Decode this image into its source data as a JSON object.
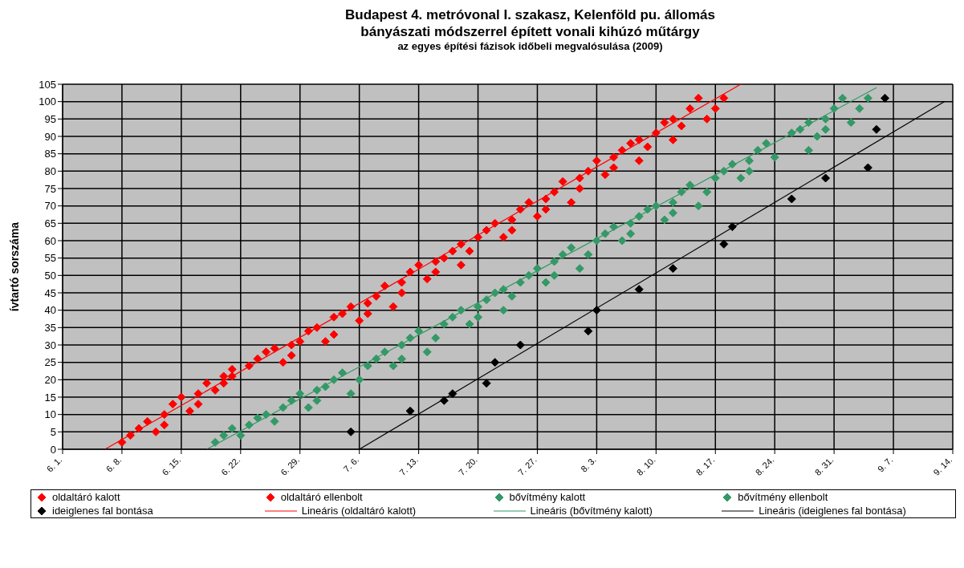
{
  "chart_data": {
    "type": "scatter",
    "title": "Budapest 4. metróvonal I. szakasz, Kelenföld pu. állomás\nbányászati módszerrel épített vonali kihúzó műtárgy",
    "subtitle": "az egyes építési fázisok időbeli megvalósulása (2009)",
    "ylabel": "ívtartó sorszáma",
    "marker": "diamond",
    "grid": true,
    "legend": "bottom",
    "xlim": [
      "2009-06-01",
      "2009-09-14"
    ],
    "xticks": [
      {
        "value": "2009-06-01",
        "label": "6. 1."
      },
      {
        "value": "2009-06-08",
        "label": "6. 8."
      },
      {
        "value": "2009-06-15",
        "label": "6. 15."
      },
      {
        "value": "2009-06-22",
        "label": "6. 22."
      },
      {
        "value": "2009-06-29",
        "label": "6. 29."
      },
      {
        "value": "2009-07-06",
        "label": "7. 6."
      },
      {
        "value": "2009-07-13",
        "label": "7. 13."
      },
      {
        "value": "2009-07-20",
        "label": "7. 20."
      },
      {
        "value": "2009-07-27",
        "label": "7. 27."
      },
      {
        "value": "2009-08-03",
        "label": "8. 3."
      },
      {
        "value": "2009-08-10",
        "label": "8. 10."
      },
      {
        "value": "2009-08-17",
        "label": "8. 17."
      },
      {
        "value": "2009-08-24",
        "label": "8. 24."
      },
      {
        "value": "2009-08-31",
        "label": "8. 31."
      },
      {
        "value": "2009-09-07",
        "label": "9. 7."
      },
      {
        "value": "2009-09-14",
        "label": "9. 14."
      }
    ],
    "ylim": [
      0,
      105
    ],
    "yticks": [
      0,
      5,
      10,
      15,
      20,
      25,
      30,
      35,
      40,
      45,
      50,
      55,
      60,
      65,
      70,
      75,
      80,
      85,
      90,
      95,
      100,
      105
    ],
    "series": [
      {
        "name": "oldaltáró kalott",
        "color": "#ff0000",
        "x": [
          "2009-06-08",
          "2009-06-09",
          "2009-06-10",
          "2009-06-11",
          "2009-06-13",
          "2009-06-14",
          "2009-06-15",
          "2009-06-17",
          "2009-06-18",
          "2009-06-20",
          "2009-06-21",
          "2009-06-23",
          "2009-06-24",
          "2009-06-25",
          "2009-06-26",
          "2009-06-28",
          "2009-06-29",
          "2009-06-30",
          "2009-07-01",
          "2009-07-03",
          "2009-07-04",
          "2009-07-05",
          "2009-07-07",
          "2009-07-08",
          "2009-07-09",
          "2009-07-11",
          "2009-07-12",
          "2009-07-13",
          "2009-07-15",
          "2009-07-16",
          "2009-07-17",
          "2009-07-18",
          "2009-07-20",
          "2009-07-21",
          "2009-07-22",
          "2009-07-24",
          "2009-07-25",
          "2009-07-26",
          "2009-07-28",
          "2009-07-29",
          "2009-07-30",
          "2009-08-01",
          "2009-08-02",
          "2009-08-03",
          "2009-08-05",
          "2009-08-06",
          "2009-08-07",
          "2009-08-08",
          "2009-08-10",
          "2009-08-11",
          "2009-08-12",
          "2009-08-14",
          "2009-08-15"
        ],
        "values": [
          2,
          4,
          6,
          8,
          10,
          13,
          15,
          16,
          19,
          21,
          23,
          24,
          26,
          28,
          29,
          30,
          31,
          34,
          35,
          38,
          39,
          41,
          42,
          44,
          47,
          48,
          51,
          53,
          54,
          55,
          57,
          59,
          61,
          63,
          65,
          66,
          69,
          71,
          72,
          74,
          77,
          78,
          80,
          83,
          84,
          86,
          88,
          89,
          91,
          94,
          95,
          98,
          101
        ]
      },
      {
        "name": "oldaltáró ellenbolt",
        "color": "#ff0000",
        "x": [
          "2009-06-12",
          "2009-06-13",
          "2009-06-16",
          "2009-06-17",
          "2009-06-19",
          "2009-06-20",
          "2009-06-21",
          "2009-06-27",
          "2009-06-28",
          "2009-07-02",
          "2009-07-03",
          "2009-07-06",
          "2009-07-07",
          "2009-07-10",
          "2009-07-11",
          "2009-07-14",
          "2009-07-15",
          "2009-07-18",
          "2009-07-19",
          "2009-07-23",
          "2009-07-24",
          "2009-07-27",
          "2009-07-28",
          "2009-07-31",
          "2009-08-01",
          "2009-08-04",
          "2009-08-05",
          "2009-08-08",
          "2009-08-09",
          "2009-08-12",
          "2009-08-13",
          "2009-08-16",
          "2009-08-17",
          "2009-08-18"
        ],
        "values": [
          5,
          7,
          11,
          13,
          17,
          19,
          21,
          25,
          27,
          31,
          33,
          37,
          39,
          41,
          45,
          49,
          51,
          53,
          57,
          61,
          63,
          67,
          69,
          71,
          75,
          79,
          81,
          83,
          87,
          89,
          93,
          95,
          98,
          101
        ]
      },
      {
        "name": "bővítmény kalott",
        "color": "#339966",
        "x": [
          "2009-06-19",
          "2009-06-20",
          "2009-06-21",
          "2009-06-23",
          "2009-06-24",
          "2009-06-25",
          "2009-06-27",
          "2009-06-28",
          "2009-06-29",
          "2009-07-01",
          "2009-07-02",
          "2009-07-03",
          "2009-07-04",
          "2009-07-07",
          "2009-07-08",
          "2009-07-09",
          "2009-07-11",
          "2009-07-12",
          "2009-07-13",
          "2009-07-16",
          "2009-07-17",
          "2009-07-18",
          "2009-07-20",
          "2009-07-21",
          "2009-07-22",
          "2009-07-23",
          "2009-07-25",
          "2009-07-26",
          "2009-07-27",
          "2009-07-29",
          "2009-07-30",
          "2009-07-31",
          "2009-08-03",
          "2009-08-04",
          "2009-08-05",
          "2009-08-07",
          "2009-08-08",
          "2009-08-09",
          "2009-08-10",
          "2009-08-12",
          "2009-08-13",
          "2009-08-14",
          "2009-08-17",
          "2009-08-18",
          "2009-08-19",
          "2009-08-21",
          "2009-08-22",
          "2009-08-23",
          "2009-08-26",
          "2009-08-27",
          "2009-08-28",
          "2009-08-30",
          "2009-08-31",
          "2009-09-01"
        ],
        "values": [
          2,
          4,
          6,
          7,
          9,
          10,
          12,
          14,
          16,
          17,
          18,
          20,
          22,
          24,
          26,
          28,
          30,
          32,
          34,
          36,
          38,
          40,
          41,
          43,
          45,
          46,
          48,
          50,
          52,
          54,
          56,
          58,
          60,
          62,
          64,
          65,
          67,
          69,
          70,
          71,
          74,
          76,
          78,
          80,
          82,
          83,
          86,
          88,
          91,
          92,
          94,
          95,
          98,
          101
        ]
      },
      {
        "name": "bővítmény ellenbolt",
        "color": "#339966",
        "x": [
          "2009-06-22",
          "2009-06-26",
          "2009-06-30",
          "2009-07-01",
          "2009-07-05",
          "2009-07-06",
          "2009-07-10",
          "2009-07-11",
          "2009-07-14",
          "2009-07-15",
          "2009-07-19",
          "2009-07-20",
          "2009-07-23",
          "2009-07-24",
          "2009-07-28",
          "2009-07-29",
          "2009-08-01",
          "2009-08-02",
          "2009-08-06",
          "2009-08-07",
          "2009-08-11",
          "2009-08-12",
          "2009-08-15",
          "2009-08-16",
          "2009-08-20",
          "2009-08-21",
          "2009-08-24",
          "2009-08-28",
          "2009-08-29",
          "2009-08-30",
          "2009-09-02",
          "2009-09-03",
          "2009-09-04"
        ],
        "values": [
          4,
          8,
          12,
          14,
          16,
          20,
          24,
          26,
          28,
          32,
          36,
          38,
          40,
          44,
          48,
          50,
          52,
          56,
          60,
          62,
          66,
          68,
          70,
          74,
          78,
          80,
          84,
          86,
          90,
          92,
          94,
          98,
          101
        ]
      },
      {
        "name": "ideiglenes fal bontása",
        "color": "#000000",
        "x": [
          "2009-07-05",
          "2009-07-12",
          "2009-07-16",
          "2009-07-17",
          "2009-07-21",
          "2009-07-22",
          "2009-07-25",
          "2009-08-02",
          "2009-08-03",
          "2009-08-08",
          "2009-08-12",
          "2009-08-18",
          "2009-08-19",
          "2009-08-26",
          "2009-08-30",
          "2009-09-04",
          "2009-09-05",
          "2009-09-06"
        ],
        "values": [
          5,
          11,
          14,
          16,
          19,
          25,
          30,
          34,
          40,
          46,
          52,
          59,
          64,
          72,
          78,
          81,
          92,
          101
        ]
      },
      {
        "name": "Lineáris (oldaltáró kalott)",
        "type": "line",
        "marker": "none",
        "color": "#ff0000",
        "line_style": "solid",
        "x": [
          "2009-06-06",
          "2009-08-20"
        ],
        "values": [
          0,
          105
        ]
      },
      {
        "name": "Lineáris (bővítmény kalott)",
        "type": "line",
        "marker": "none",
        "color": "#339966",
        "line_style": "solid",
        "x": [
          "2009-06-18",
          "2009-09-05"
        ],
        "values": [
          0,
          104
        ]
      },
      {
        "name": "Lineáris (ideiglenes fal bontása)",
        "type": "line",
        "marker": "none",
        "color": "#000000",
        "line_style": "solid",
        "x": [
          "2009-07-06",
          "2009-09-13"
        ],
        "values": [
          0,
          100
        ]
      }
    ]
  }
}
